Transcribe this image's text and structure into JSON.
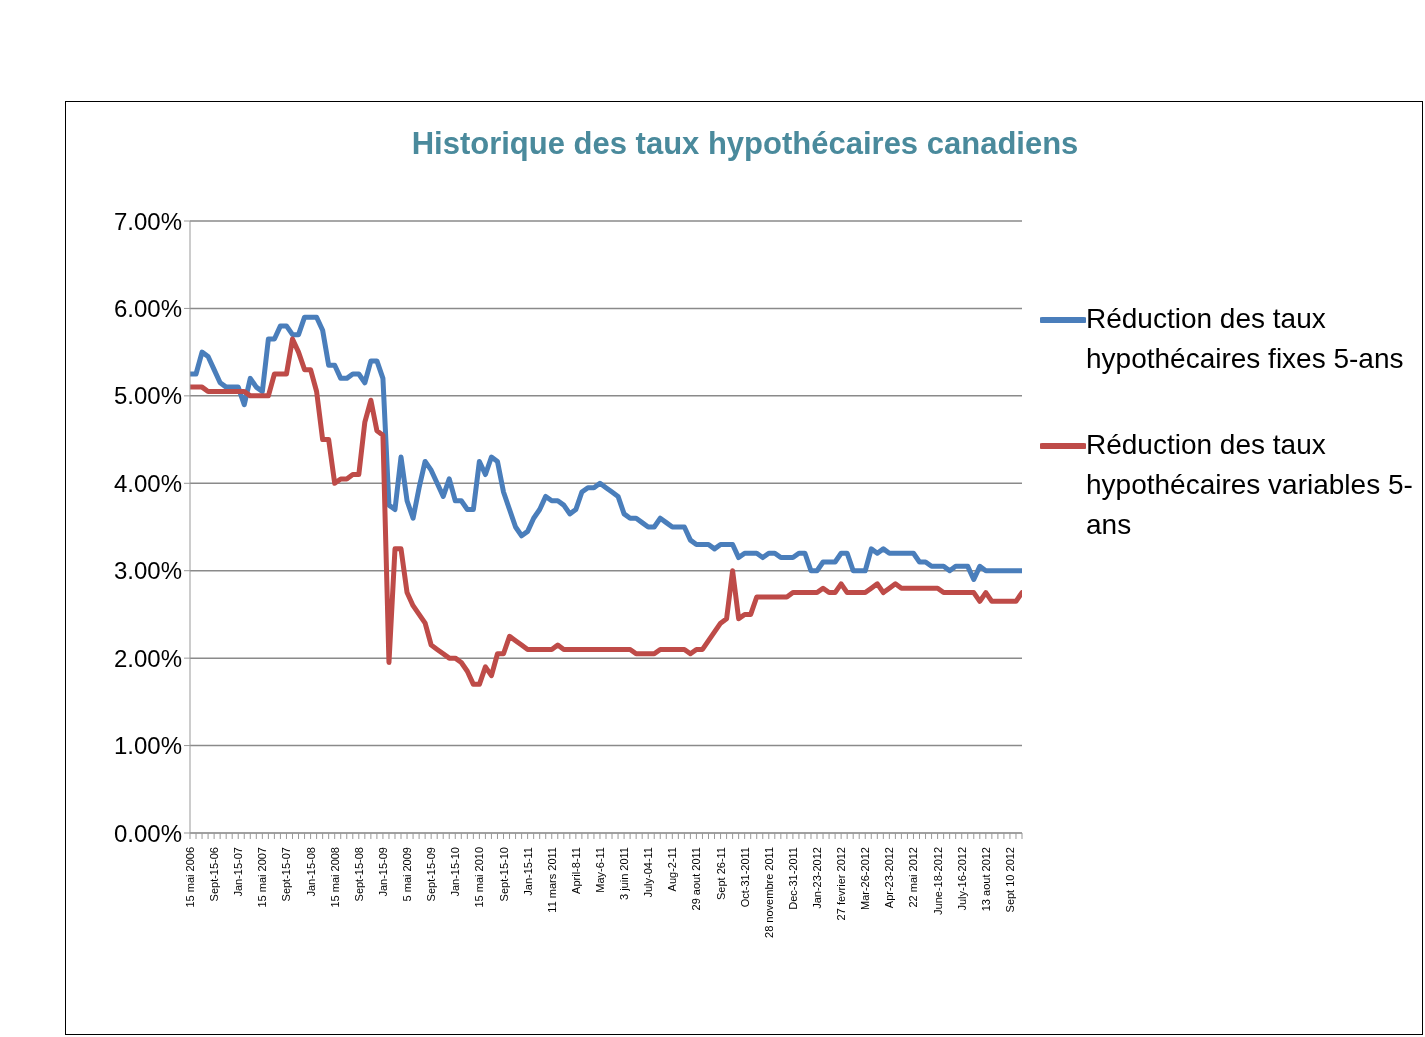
{
  "chart_data": {
    "type": "line",
    "title": "Historique des taux hypothécaires canadiens",
    "categories": [
      "15 mai 2006",
      null,
      null,
      null,
      "Sept-15-06",
      null,
      null,
      null,
      "Jan-15-07",
      null,
      null,
      null,
      "15 mai 2007",
      null,
      null,
      null,
      "Sept-15-07",
      null,
      null,
      null,
      "Jan-15-08",
      null,
      null,
      null,
      "15 mai 2008",
      null,
      null,
      null,
      "Sept-15-08",
      null,
      null,
      null,
      "Jan-15-09",
      null,
      null,
      null,
      "5 mai 2009",
      null,
      null,
      null,
      "Sept-15-09",
      null,
      null,
      null,
      "Jan-15-10",
      null,
      null,
      null,
      "15 mai 2010",
      null,
      null,
      null,
      "Sept-15-10",
      null,
      null,
      null,
      "Jan-15-11",
      null,
      null,
      null,
      "11 mars 2011",
      null,
      null,
      null,
      "April-8-11",
      null,
      null,
      null,
      "May-6-11",
      null,
      null,
      null,
      "3 juin 2011",
      null,
      null,
      null,
      "July-04-11",
      null,
      null,
      null,
      "Aug-2-11",
      null,
      null,
      null,
      "29 aout 2011",
      null,
      null,
      null,
      "Sept 26-11",
      null,
      null,
      null,
      "Oct-31-2011",
      null,
      null,
      null,
      "28 novembre 2011",
      null,
      null,
      null,
      "Dec-31-2011",
      null,
      null,
      null,
      "Jan-23-2012",
      null,
      null,
      null,
      "27 fevrier 2012",
      null,
      null,
      null,
      "Mar-26-2012",
      null,
      null,
      null,
      "Apr-23-2012",
      null,
      null,
      null,
      "22 mai 2012",
      null,
      null,
      null,
      "June-18-2012",
      null,
      null,
      null,
      "July-16-2012",
      null,
      null,
      null,
      "13 aout 2012",
      null,
      null,
      null,
      "Sept 10 2012",
      null,
      null
    ],
    "series": [
      {
        "name": "Réduction des taux hypothécaires fixes 5-ans",
        "color": "#4a7ebb",
        "values": [
          5.25,
          5.25,
          5.5,
          5.45,
          5.3,
          5.15,
          5.1,
          5.1,
          5.1,
          4.9,
          5.2,
          5.1,
          5.05,
          5.65,
          5.65,
          5.8,
          5.8,
          5.7,
          5.7,
          5.9,
          5.9,
          5.9,
          5.75,
          5.35,
          5.35,
          5.2,
          5.2,
          5.25,
          5.25,
          5.15,
          5.4,
          5.4,
          5.2,
          3.75,
          3.7,
          4.3,
          3.8,
          3.6,
          3.95,
          4.25,
          4.15,
          4.0,
          3.85,
          4.05,
          3.8,
          3.8,
          3.7,
          3.7,
          4.25,
          4.1,
          4.3,
          4.25,
          3.9,
          3.7,
          3.5,
          3.4,
          3.45,
          3.6,
          3.7,
          3.85,
          3.8,
          3.8,
          3.75,
          3.65,
          3.7,
          3.9,
          3.95,
          3.95,
          4.0,
          3.95,
          3.9,
          3.85,
          3.65,
          3.6,
          3.6,
          3.55,
          3.5,
          3.5,
          3.6,
          3.55,
          3.5,
          3.5,
          3.5,
          3.35,
          3.3,
          3.3,
          3.3,
          3.25,
          3.3,
          3.3,
          3.3,
          3.15,
          3.2,
          3.2,
          3.2,
          3.15,
          3.2,
          3.2,
          3.15,
          3.15,
          3.15,
          3.2,
          3.2,
          3.0,
          3.0,
          3.1,
          3.1,
          3.1,
          3.2,
          3.2,
          3.0,
          3.0,
          3.0,
          3.25,
          3.2,
          3.25,
          3.2,
          3.2,
          3.2,
          3.2,
          3.2,
          3.1,
          3.1,
          3.05,
          3.05,
          3.05,
          3.0,
          3.05,
          3.05,
          3.05,
          2.9,
          3.05,
          3.0,
          3.0,
          3.0,
          3.0,
          3.0,
          3.0,
          3.0
        ]
      },
      {
        "name": "Réduction des taux hypothécaires variables 5-ans",
        "color": "#be4b48",
        "values": [
          5.1,
          5.1,
          5.1,
          5.05,
          5.05,
          5.05,
          5.05,
          5.05,
          5.05,
          5.05,
          5.0,
          5.0,
          5.0,
          5.0,
          5.25,
          5.25,
          5.25,
          5.65,
          5.5,
          5.3,
          5.3,
          5.05,
          4.5,
          4.5,
          4.0,
          4.05,
          4.05,
          4.1,
          4.1,
          4.7,
          4.95,
          4.6,
          4.55,
          1.95,
          3.25,
          3.25,
          2.75,
          2.6,
          2.5,
          2.4,
          2.15,
          2.1,
          2.05,
          2.0,
          2.0,
          1.95,
          1.85,
          1.7,
          1.7,
          1.9,
          1.8,
          2.05,
          2.05,
          2.25,
          2.2,
          2.15,
          2.1,
          2.1,
          2.1,
          2.1,
          2.1,
          2.15,
          2.1,
          2.1,
          2.1,
          2.1,
          2.1,
          2.1,
          2.1,
          2.1,
          2.1,
          2.1,
          2.1,
          2.1,
          2.05,
          2.05,
          2.05,
          2.05,
          2.1,
          2.1,
          2.1,
          2.1,
          2.1,
          2.05,
          2.1,
          2.1,
          2.2,
          2.3,
          2.4,
          2.45,
          3.0,
          2.45,
          2.5,
          2.5,
          2.7,
          2.7,
          2.7,
          2.7,
          2.7,
          2.7,
          2.75,
          2.75,
          2.75,
          2.75,
          2.75,
          2.8,
          2.75,
          2.75,
          2.85,
          2.75,
          2.75,
          2.75,
          2.75,
          2.8,
          2.85,
          2.75,
          2.8,
          2.85,
          2.8,
          2.8,
          2.8,
          2.8,
          2.8,
          2.8,
          2.8,
          2.75,
          2.75,
          2.75,
          2.75,
          2.75,
          2.75,
          2.65,
          2.75,
          2.65,
          2.65,
          2.65,
          2.65,
          2.65,
          2.75
        ]
      }
    ],
    "ylim": [
      0,
      7
    ],
    "yticks": [
      {
        "value": 0,
        "label": "0.00%"
      },
      {
        "value": 1,
        "label": "1.00%"
      },
      {
        "value": 2,
        "label": "2.00%"
      },
      {
        "value": 3,
        "label": "3.00%"
      },
      {
        "value": 4,
        "label": "4.00%"
      },
      {
        "value": 5,
        "label": "5.00%"
      },
      {
        "value": 6,
        "label": "6.00%"
      },
      {
        "value": 7,
        "label": "7.00%"
      }
    ],
    "grid": "y",
    "legend": "right",
    "marker": "none",
    "line_style": "solid"
  }
}
